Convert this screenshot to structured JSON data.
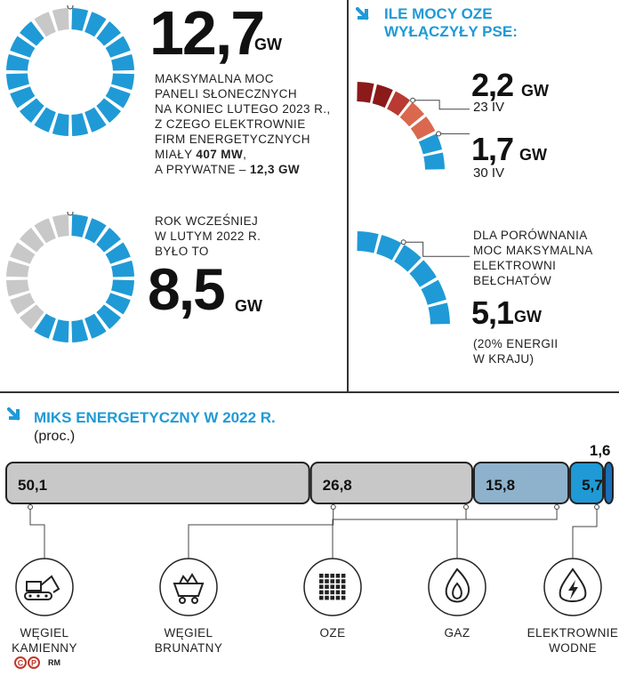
{
  "panel_top_left": {
    "value": "12,7",
    "unit": "GW",
    "desc_lines": [
      "MAKSYMALNA MOC",
      "PANELI SŁONECZNYCH",
      "NA KONIEC LUTEGO 2023 R.,",
      "Z CZEGO ELEKTROWNIE",
      "FIRM ENERGETYCZNYCH"
    ],
    "desc_line6_prefix": "MIAŁY ",
    "desc_line6_bold": "407 MW",
    "desc_line6_suffix": ",",
    "desc_line7_prefix": "A PRYWATNE – ",
    "desc_line7_bold": "12,3 GW",
    "ring_fill_fraction": 0.92
  },
  "panel_mid_left": {
    "desc_lines": [
      "ROK WCZEŚNIEJ",
      "W LUTYM 2022 R.",
      "BYŁO TO"
    ],
    "value": "8,5",
    "unit": "GW",
    "ring_fill_fraction": 0.61
  },
  "panel_right": {
    "title_lines": [
      "ILE MOCY OZE",
      "WYŁĄCZYŁY PSE:"
    ],
    "readings": [
      {
        "value": "2,2",
        "unit": "GW",
        "date": "23 IV"
      },
      {
        "value": "1,7",
        "unit": "GW",
        "date": "30 IV"
      }
    ],
    "compare_lines": [
      "DLA PORÓWNANIA",
      "MOC MAKSYMALNA",
      "ELEKTROWNI",
      "BEŁCHATÓW"
    ],
    "compare_value": "5,1",
    "compare_unit": "GW",
    "note_lines": [
      "(20% ENERGII",
      "W KRAJU)"
    ]
  },
  "mix": {
    "title": "MIKS ENERGETYCZNY W 2022 R.",
    "subtitle": "(proc.)",
    "icons": [
      "excavator-icon",
      "coal-cart-icon",
      "solar-panel-icon",
      "gas-flame-icon",
      "hydro-power-icon"
    ]
  },
  "chart_data": {
    "type": "bar",
    "stacked": true,
    "orientation": "horizontal",
    "title": "MIKS ENERGETYCZNY W 2022 R.",
    "unit_label": "(proc.)",
    "categories": [
      "WĘGIEL KAMIENNY",
      "WĘGIEL BRUNATNY",
      "OZE",
      "GAZ",
      "ELEKTROWNIE WODNE"
    ],
    "category_label_lines": [
      [
        "WĘGIEL",
        "KAMIENNY"
      ],
      [
        "WĘGIEL",
        "BRUNATNY"
      ],
      [
        "OZE"
      ],
      [
        "GAZ"
      ],
      [
        "ELEKTROWNIE",
        "WODNE"
      ]
    ],
    "segments": [
      {
        "value": 50.1,
        "label": "50,1",
        "color": "#c8c8c8"
      },
      {
        "value": 26.8,
        "label": "26,8",
        "color": "#c8c8c8"
      },
      {
        "value": 15.8,
        "label": "15,8",
        "color": "#8fb2cc"
      },
      {
        "value": 5.7,
        "label": "5,7",
        "color": "#1f9ad6"
      },
      {
        "value": 1.6,
        "label": "1,6",
        "color": "#1a6fb8"
      }
    ]
  },
  "colors": {
    "accent_blue": "#1f9ad6",
    "grey": "#c8c8c8",
    "dark_red": "#8b1a1a",
    "mid_red": "#b83a32",
    "light_red": "#d9684e"
  },
  "credit": "RM"
}
